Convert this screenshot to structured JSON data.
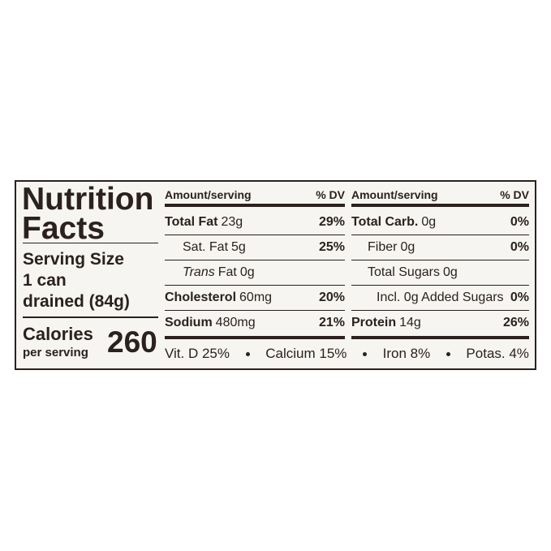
{
  "left": {
    "title_line1": "Nutrition",
    "title_line2": "Facts",
    "serving_size_label": "Serving Size",
    "serving_size_line1": "1 can",
    "serving_size_line2": "drained (84g)",
    "calories_label": "Calories",
    "calories_sub": "per serving",
    "calories": 260
  },
  "columns": [
    {
      "header_amount": "Amount/serving",
      "header_dv": "% DV",
      "rows": [
        {
          "name": "Total Fat",
          "amount": "23g",
          "dv": "29%"
        },
        {
          "name": "Sat. Fat",
          "amount": "5g",
          "dv": "25%"
        },
        {
          "italic": "Trans",
          "name": "Fat",
          "amount": "0g"
        },
        {
          "name": "Cholesterol",
          "amount": "60mg",
          "dv": "20%"
        },
        {
          "name": "Sodium",
          "amount": "480mg",
          "dv": "21%"
        }
      ]
    },
    {
      "header_amount": "Amount/serving",
      "header_dv": "% DV",
      "rows": [
        {
          "name": "Total Carb.",
          "amount": "0g",
          "dv": "0%"
        },
        {
          "name": "Fiber",
          "amount": "0g",
          "dv": "0%"
        },
        {
          "name": "Total Sugars",
          "amount": "0g"
        },
        {
          "name": "Incl. 0g Added Sugars",
          "dv": "0%"
        },
        {
          "name": "Protein",
          "amount": "14g",
          "dv": "26%"
        }
      ]
    }
  ],
  "footer": [
    "Vit. D 25%",
    "Calcium 15%",
    "Iron 8%",
    "Potas. 4%"
  ]
}
